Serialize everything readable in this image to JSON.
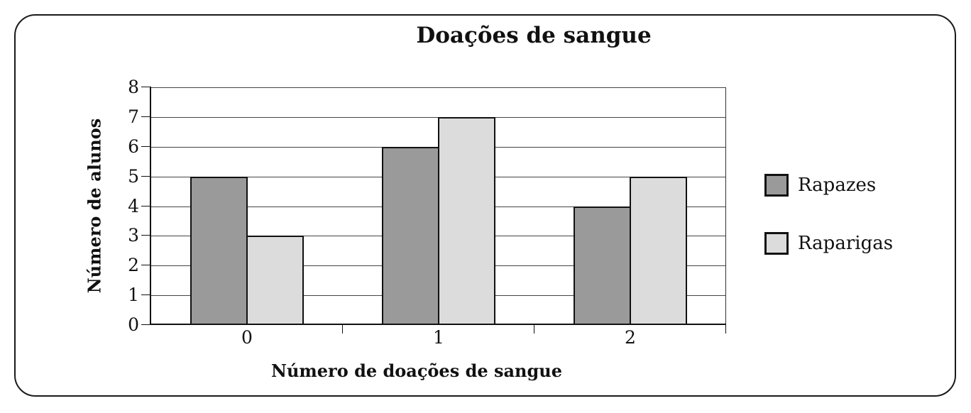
{
  "chart_data": {
    "type": "bar",
    "title": "Doações de sangue",
    "xlabel": "Número de doações de sangue",
    "ylabel": "Número de alunos",
    "categories": [
      "0",
      "1",
      "2"
    ],
    "series": [
      {
        "name": "Rapazes",
        "color": "#9a9a9a",
        "values": [
          5,
          6,
          4
        ]
      },
      {
        "name": "Raparigas",
        "color": "#dcdcdc",
        "values": [
          3,
          7,
          5
        ]
      }
    ],
    "ylim": [
      0,
      8
    ],
    "yticks": [
      "0",
      "1",
      "2",
      "3",
      "4",
      "5",
      "6",
      "7",
      "8"
    ],
    "grid": true,
    "legend_position": "right"
  },
  "colors": {
    "bar_border": "#111111",
    "gridline": "#444444",
    "axis": "#111111",
    "frame_border": "#1a1a1a",
    "background": "#ffffff"
  }
}
